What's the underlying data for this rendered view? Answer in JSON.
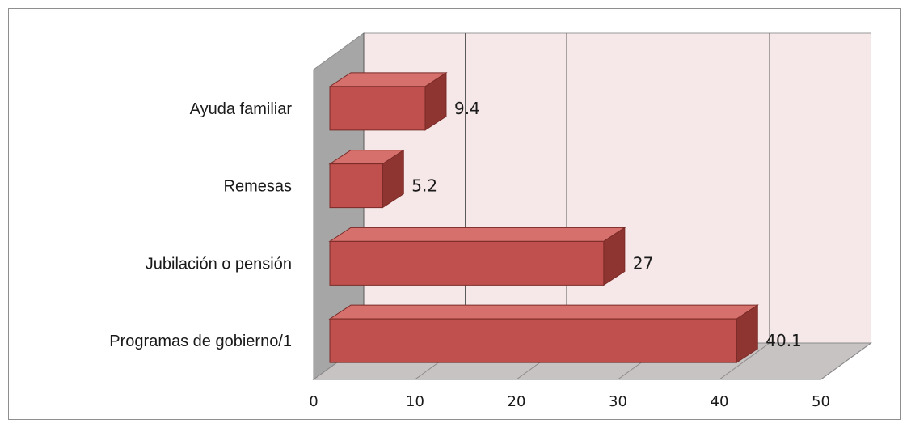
{
  "chart_data": {
    "type": "bar",
    "orientation": "horizontal",
    "three_d": true,
    "categories": [
      "Programas de gobierno/1",
      "Jubilación o pensión",
      "Remesas",
      "Ayuda familiar"
    ],
    "values": [
      40.1,
      27,
      5.2,
      9.4
    ],
    "data_labels": [
      "40.1",
      "27",
      "5.2",
      "9.4"
    ],
    "title": "",
    "xlabel": "",
    "ylabel": "",
    "xlim": [
      0,
      50
    ],
    "x_ticks": [
      "0",
      "10",
      "20",
      "30",
      "40",
      "50"
    ],
    "grid": "vertical",
    "legend": "none",
    "colors": {
      "bar_front": "#c0504d",
      "bar_top": "#d5706c",
      "bar_side": "#8e3531",
      "bar_edge": "#7a2a27",
      "plot_wall": "#f6e8e8",
      "side_wall": "#a6a6a6",
      "floor": "#c8c3c3",
      "grid": "#5a5a5a"
    }
  }
}
